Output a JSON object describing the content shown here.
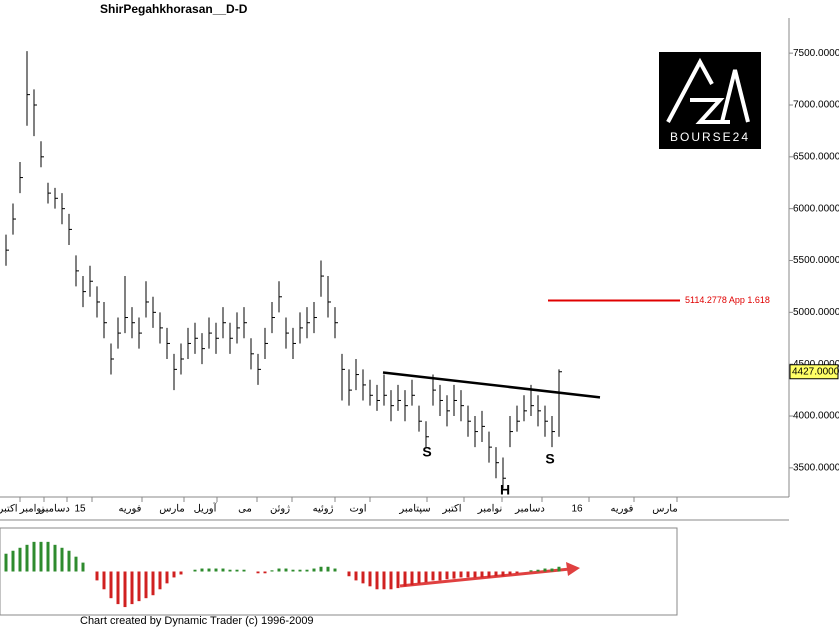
{
  "chart_data": {
    "type": "hlc",
    "title": "ShirPegahkhorasan__D-D",
    "footer": "Chart created by Dynamic Trader  (c) 1996-2009",
    "logo": "BOURSE24",
    "ylim": [
      3219,
      7839
    ],
    "yticks": [
      {
        "value": 3500,
        "label": "3500.0000"
      },
      {
        "value": 4000,
        "label": "4000.0000"
      },
      {
        "value": 4500,
        "label": "4500.0000"
      },
      {
        "value": 5000,
        "label": "5000.0000"
      },
      {
        "value": 5500,
        "label": "5500.0000"
      },
      {
        "value": 6000,
        "label": "6000.0000"
      },
      {
        "value": 6500,
        "label": "6500.0000"
      },
      {
        "value": 7000,
        "label": "7000.0000"
      },
      {
        "value": 7500,
        "label": "7500.0000"
      }
    ],
    "last_price": {
      "value": 4427,
      "label": "4427.0000"
    },
    "target_line": {
      "value": 5114.2778,
      "label": "5114.2778 App 1.618",
      "color": "#e00000"
    },
    "trendline": {
      "values": [
        4420,
        4180
      ],
      "color": "#000000"
    },
    "annotations": [
      "S",
      "H",
      "S"
    ],
    "x_axis_labels": [
      "اکتبر",
      "نوامبر",
      "دسامبر",
      "15",
      "فوریه",
      "مارس",
      "آوریل",
      "می",
      "ژوئن",
      "ژوئیه",
      "اوت",
      "سپتامبر",
      "اکتبر",
      "نوامبر",
      "دسامبر",
      "16",
      "فوریه",
      "مارس"
    ],
    "high": [
      5750,
      6050,
      6450,
      7520,
      7150,
      6650,
      6250,
      6200,
      6150,
      5950,
      5550,
      5350,
      5450,
      5250,
      5100,
      4700,
      4950,
      5350,
      5050,
      4950,
      5300,
      5150,
      5000,
      4850,
      4600,
      4700,
      4850,
      4900,
      4800,
      4950,
      4900,
      5050,
      4900,
      5000,
      5050,
      4750,
      4600,
      4850,
      5100,
      5300,
      4950,
      4850,
      5000,
      5050,
      5100,
      5500,
      5350,
      5050,
      4600,
      4450,
      4550,
      4450,
      4350,
      4300,
      4400,
      4250,
      4300,
      4250,
      4350,
      4100,
      3950,
      4400,
      4300,
      4200,
      4300,
      4250,
      4100,
      4000,
      4050,
      3850,
      3700,
      3600,
      4000,
      4100,
      4200,
      4300,
      4200,
      4100,
      4000,
      4450
    ],
    "low": [
      5450,
      5750,
      6150,
      6800,
      6700,
      6400,
      6050,
      6000,
      5850,
      5650,
      5250,
      5050,
      5150,
      4950,
      4750,
      4400,
      4650,
      4800,
      4750,
      4650,
      4950,
      4850,
      4700,
      4550,
      4250,
      4400,
      4550,
      4600,
      4500,
      4650,
      4600,
      4750,
      4600,
      4700,
      4750,
      4450,
      4300,
      4550,
      4800,
      5000,
      4650,
      4550,
      4700,
      4750,
      4800,
      5150,
      4950,
      4750,
      4150,
      4100,
      4250,
      4150,
      4100,
      4050,
      4100,
      3950,
      4050,
      3950,
      4100,
      3850,
      3700,
      4100,
      4000,
      3900,
      4000,
      3950,
      3800,
      3700,
      3750,
      3550,
      3400,
      3300,
      3700,
      3850,
      3950,
      4000,
      3900,
      3800,
      3700,
      3800
    ],
    "close": [
      5600,
      5900,
      6300,
      7100,
      7000,
      6500,
      6150,
      6100,
      6000,
      5800,
      5400,
      5200,
      5300,
      5100,
      4900,
      4550,
      4800,
      4950,
      4900,
      4800,
      5100,
      5000,
      4850,
      4700,
      4450,
      4550,
      4700,
      4750,
      4650,
      4800,
      4750,
      4900,
      4750,
      4850,
      4900,
      4600,
      4450,
      4700,
      4950,
      5150,
      4800,
      4700,
      4850,
      4900,
      4950,
      5350,
      5100,
      4900,
      4450,
      4250,
      4400,
      4300,
      4200,
      4150,
      4200,
      4100,
      4150,
      4100,
      4200,
      3950,
      3800,
      4250,
      4150,
      4050,
      4150,
      4100,
      3950,
      3850,
      3900,
      3700,
      3550,
      3400,
      3850,
      3950,
      4050,
      4100,
      4050,
      3950,
      3850,
      4427
    ],
    "color": "#000000",
    "indicator": {
      "type": "histogram",
      "ylim": [
        -7,
        7
      ],
      "up_color": "#2e8b2e",
      "down_color": "#d02020",
      "values": [
        3,
        3.5,
        4,
        4.5,
        5,
        5,
        5,
        4.5,
        4,
        3.5,
        2.5,
        1.5,
        0,
        -1.5,
        -3,
        -4.5,
        -5.5,
        -6,
        -5.5,
        -5,
        -4.5,
        -4,
        -3,
        -2,
        -1,
        -0.5,
        0,
        0.3,
        0.5,
        0.5,
        0.5,
        0.5,
        0.3,
        0.3,
        0.3,
        0,
        -0.3,
        -0.3,
        0.2,
        0.5,
        0.5,
        0.3,
        0.3,
        0.3,
        0.5,
        0.8,
        0.8,
        0.5,
        0,
        -0.8,
        -1.5,
        -2,
        -2.5,
        -3,
        -3,
        -3,
        -2.8,
        -2.5,
        -2.3,
        -2,
        -1.8,
        -1.5,
        -1.5,
        -1.3,
        -1.2,
        -1,
        -1,
        -1,
        -1,
        -1,
        -0.8,
        -0.8,
        -0.5,
        -0.3,
        0,
        0.2,
        0.3,
        0.5,
        0.5,
        0.8
      ]
    }
  }
}
